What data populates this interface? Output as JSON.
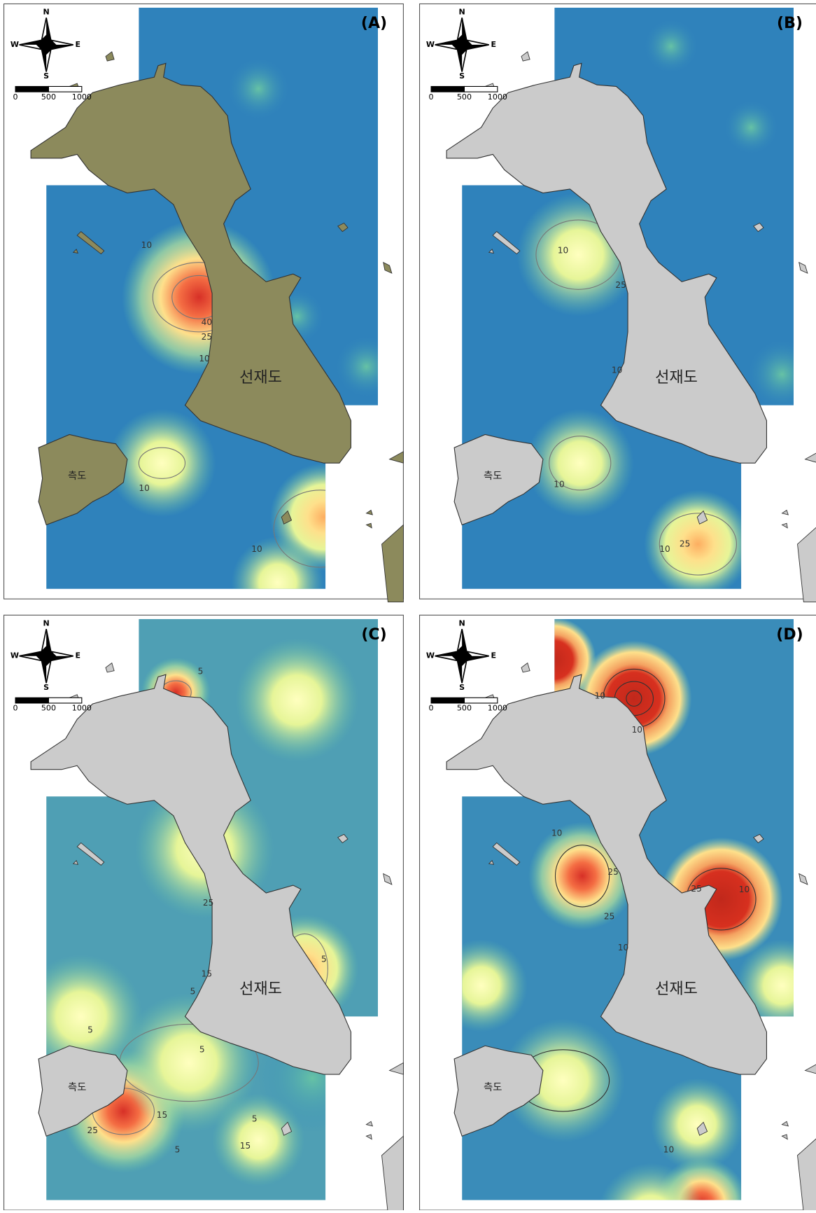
{
  "panels": [
    {
      "label": "(A)",
      "compass": {
        "n": "N",
        "s": "S",
        "e": "E",
        "w": "W"
      },
      "scale_labels": [
        "0",
        "500",
        "1000"
      ],
      "place_names": [
        "선재도",
        "측도"
      ],
      "contour_labels": [
        "10",
        "40",
        "25",
        "10",
        "10",
        "10"
      ]
    },
    {
      "label": "(B)",
      "compass": {
        "n": "N",
        "s": "S",
        "e": "E",
        "w": "W"
      },
      "scale_labels": [
        "0",
        "500",
        "1000"
      ],
      "place_names": [
        "선재도",
        "측도"
      ],
      "contour_labels": [
        "10",
        "25",
        "10",
        "10",
        "10",
        "25"
      ]
    },
    {
      "label": "(C)",
      "compass": {
        "n": "N",
        "s": "S",
        "e": "E",
        "w": "W"
      },
      "scale_labels": [
        "0",
        "500",
        "1000"
      ],
      "place_names": [
        "선재도",
        "측도"
      ],
      "contour_labels": [
        "5",
        "25",
        "15",
        "5",
        "5",
        "5",
        "5",
        "15",
        "25",
        "5",
        "5",
        "15"
      ]
    },
    {
      "label": "(D)",
      "compass": {
        "n": "N",
        "s": "S",
        "e": "E",
        "w": "W"
      },
      "scale_labels": [
        "0",
        "500",
        "1000"
      ],
      "place_names": [
        "선재도",
        "측도"
      ],
      "contour_labels": [
        "10",
        "10",
        "10",
        "25",
        "25",
        "10",
        "25",
        "10",
        "10"
      ]
    }
  ]
}
